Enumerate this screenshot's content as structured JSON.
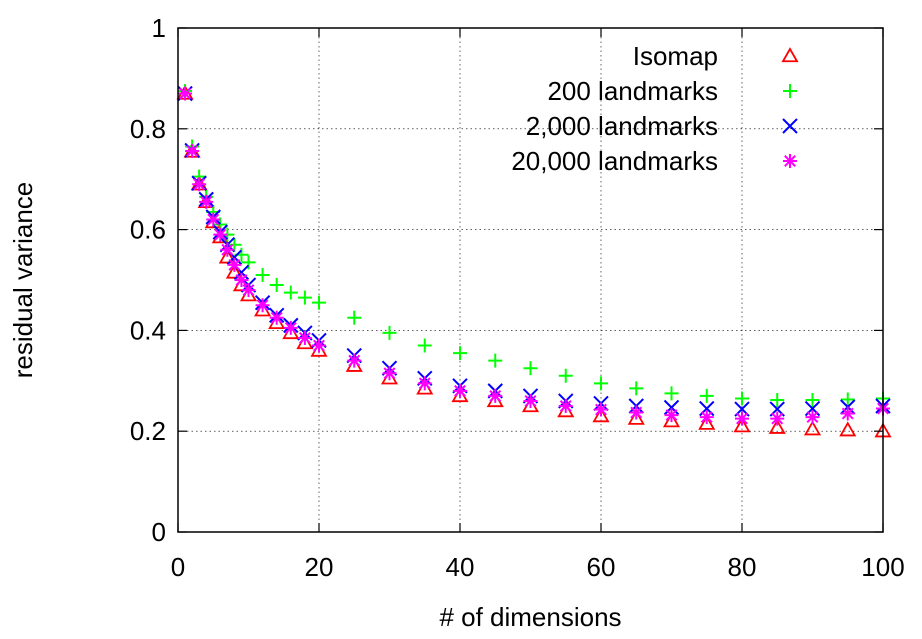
{
  "chart_data": {
    "type": "scatter",
    "xlabel": "# of dimensions",
    "ylabel": "residual variance",
    "xlim": [
      0,
      100
    ],
    "ylim": [
      0,
      1
    ],
    "xticks": [
      "0",
      "20",
      "40",
      "60",
      "80",
      "100"
    ],
    "yticks": [
      "0",
      "0.2",
      "0.4",
      "0.6",
      "0.8",
      "1"
    ],
    "grid": true,
    "legend_position": "top-right",
    "x": [
      1,
      2,
      3,
      4,
      5,
      6,
      7,
      8,
      9,
      10,
      12,
      14,
      16,
      18,
      20,
      25,
      30,
      35,
      40,
      45,
      50,
      55,
      60,
      65,
      70,
      75,
      80,
      85,
      90,
      95,
      100
    ],
    "series": [
      {
        "name": "Isomap",
        "marker": "triangle",
        "color": "#ff0000",
        "values": [
          0.87,
          0.755,
          0.69,
          0.655,
          0.615,
          0.585,
          0.545,
          0.515,
          0.49,
          0.47,
          0.44,
          0.415,
          0.395,
          0.375,
          0.36,
          0.33,
          0.305,
          0.285,
          0.27,
          0.26,
          0.25,
          0.24,
          0.23,
          0.225,
          0.22,
          0.215,
          0.21,
          0.207,
          0.204,
          0.202,
          0.2
        ]
      },
      {
        "name": "200 landmarks",
        "marker": "plus",
        "color": "#00ff00",
        "values": [
          0.875,
          0.765,
          0.705,
          0.665,
          0.635,
          0.61,
          0.59,
          0.57,
          0.55,
          0.535,
          0.51,
          0.49,
          0.475,
          0.465,
          0.455,
          0.425,
          0.395,
          0.37,
          0.355,
          0.34,
          0.325,
          0.31,
          0.295,
          0.285,
          0.275,
          0.27,
          0.265,
          0.262,
          0.262,
          0.263,
          0.265
        ]
      },
      {
        "name": "2,000 landmarks",
        "marker": "cross",
        "color": "#0000ff",
        "values": [
          0.87,
          0.757,
          0.692,
          0.66,
          0.625,
          0.595,
          0.57,
          0.545,
          0.515,
          0.49,
          0.455,
          0.43,
          0.41,
          0.395,
          0.38,
          0.35,
          0.325,
          0.305,
          0.29,
          0.28,
          0.27,
          0.26,
          0.255,
          0.25,
          0.247,
          0.245,
          0.244,
          0.244,
          0.245,
          0.248,
          0.25
        ]
      },
      {
        "name": "20,000 landmarks",
        "marker": "star",
        "color": "#ff00ff",
        "values": [
          0.87,
          0.756,
          0.69,
          0.655,
          0.62,
          0.59,
          0.56,
          0.53,
          0.5,
          0.48,
          0.45,
          0.425,
          0.405,
          0.385,
          0.37,
          0.34,
          0.315,
          0.295,
          0.28,
          0.27,
          0.26,
          0.25,
          0.243,
          0.237,
          0.232,
          0.228,
          0.225,
          0.225,
          0.228,
          0.235,
          0.245
        ]
      }
    ]
  }
}
